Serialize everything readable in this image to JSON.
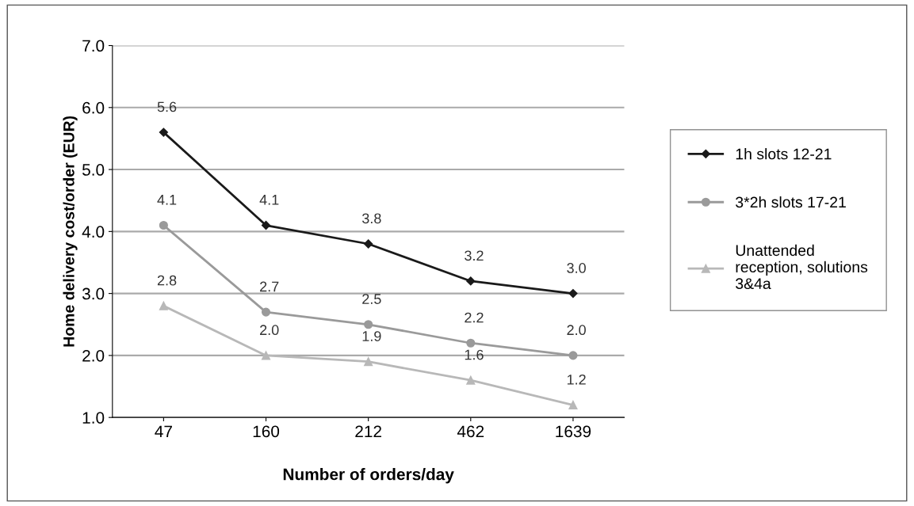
{
  "chart_data": {
    "type": "line",
    "xlabel": "Number of orders/day",
    "ylabel": "Home delivery cost/order (EUR)",
    "categories": [
      "47",
      "160",
      "212",
      "462",
      "1639"
    ],
    "series": [
      {
        "name": "1h slots 12-21",
        "color": "#1a1a1a",
        "marker": "diamond",
        "values": [
          5.6,
          4.1,
          3.8,
          3.2,
          3.0
        ],
        "value_labels": [
          "5.6",
          "4.1",
          "3.8",
          "3.2",
          "3.0"
        ]
      },
      {
        "name": "3*2h slots 17-21",
        "color": "#9a9a9a",
        "marker": "circle",
        "values": [
          4.1,
          2.7,
          2.5,
          2.2,
          2.0
        ],
        "value_labels": [
          "4.1",
          "2.7",
          "2.5",
          "2.2",
          "2.0"
        ]
      },
      {
        "name": "Unattended reception, solutions 3&4a",
        "color": "#b8b8b8",
        "marker": "triangle",
        "values": [
          2.8,
          2.0,
          1.9,
          1.6,
          1.2
        ],
        "value_labels": [
          "2.8",
          "2.0",
          "1.9",
          "1.6",
          "1.2"
        ]
      }
    ],
    "ylim": [
      1,
      7
    ],
    "yticks": [
      {
        "value": 1,
        "label": "1.0"
      },
      {
        "value": 2,
        "label": "2.0"
      },
      {
        "value": 3,
        "label": "3.0"
      },
      {
        "value": 4,
        "label": "4.0"
      },
      {
        "value": 5,
        "label": "5.0"
      },
      {
        "value": 6,
        "label": "6.0"
      },
      {
        "value": 7,
        "label": "7.0"
      }
    ],
    "grid": "y",
    "legend": "right",
    "line_style": "solid"
  }
}
